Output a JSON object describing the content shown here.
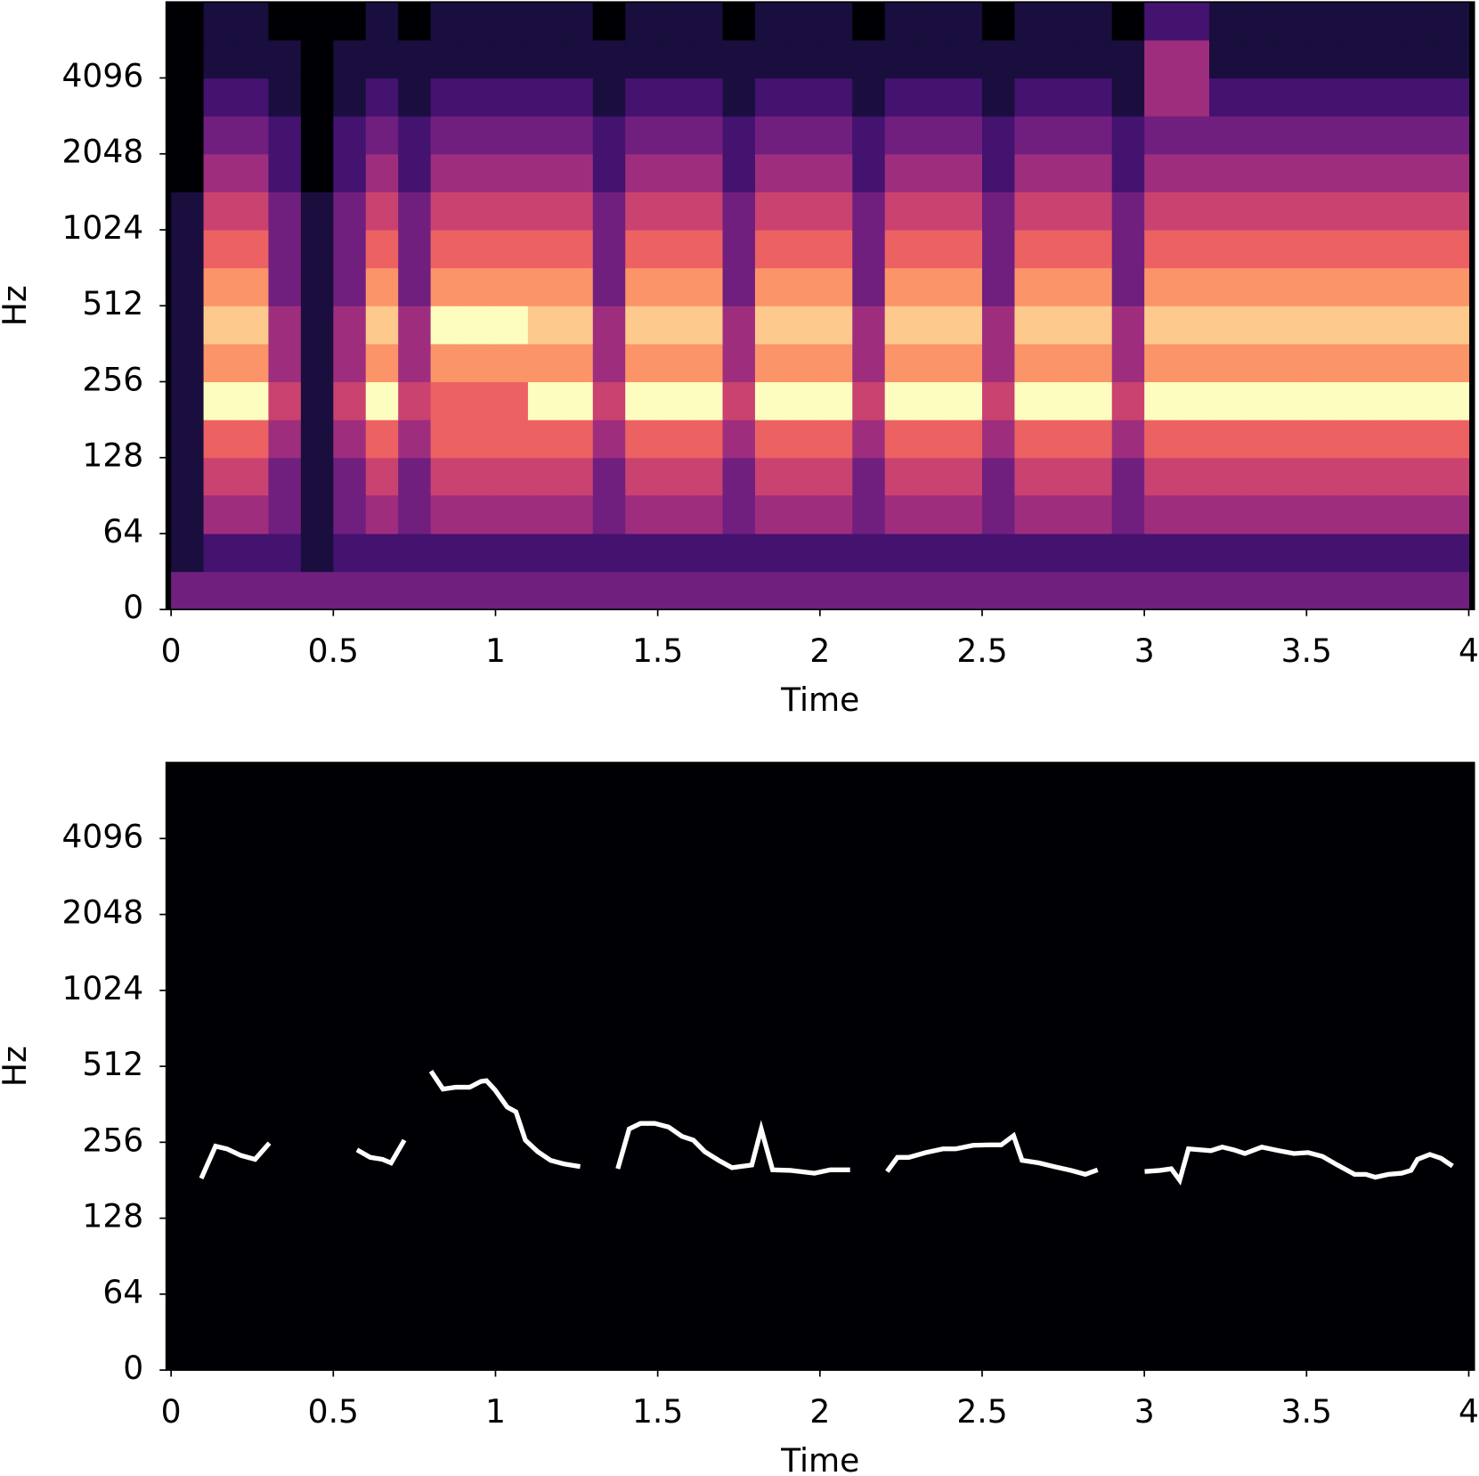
{
  "chart_data": [
    {
      "type": "heatmap",
      "xlabel": "Time",
      "ylabel": "Hz",
      "yscale": "symlog",
      "linthresh": 64,
      "colormap": "magma",
      "zlim": [
        0,
        9
      ],
      "xlim": [
        -0.015,
        4.017
      ],
      "ylim": [
        0,
        8192
      ],
      "xticks": [
        0,
        0.5,
        1,
        1.5,
        2,
        2.5,
        3,
        3.5,
        4
      ],
      "yticks": [
        0,
        64,
        128,
        256,
        512,
        1024,
        2048,
        4096
      ],
      "x_edges": [
        0,
        0.1,
        0.2,
        0.3,
        0.4,
        0.5,
        0.6,
        0.7,
        0.8,
        0.9,
        1,
        1.1,
        1.2,
        1.3,
        1.4,
        1.5,
        1.6,
        1.7,
        1.8,
        1.9,
        2,
        2.1,
        2.2,
        2.3,
        2.4,
        2.5,
        2.6,
        2.7,
        2.8,
        2.9,
        3,
        3.1,
        3.2,
        3.3,
        3.4,
        3.5,
        3.6,
        3.7,
        3.8,
        3.9,
        4
      ],
      "y_edges": [
        0,
        32,
        64,
        91,
        128,
        181,
        256,
        362,
        512,
        724,
        1024,
        1448,
        2048,
        2896,
        4096,
        5793,
        8192
      ],
      "z": [
        [
          3,
          3,
          3,
          3,
          3,
          3,
          3,
          3,
          3,
          3,
          3,
          3,
          3,
          3,
          3,
          3,
          3,
          3,
          3,
          3,
          3,
          3,
          3,
          3,
          3,
          3,
          3,
          3,
          3,
          3,
          3,
          3,
          3,
          3,
          3,
          3,
          3,
          3,
          3,
          3
        ],
        [
          1,
          2,
          2,
          2,
          1,
          2,
          2,
          2,
          2,
          2,
          2,
          2,
          2,
          2,
          2,
          2,
          2,
          2,
          2,
          2,
          2,
          2,
          2,
          2,
          2,
          2,
          2,
          2,
          2,
          2,
          2,
          2,
          2,
          2,
          2,
          2,
          2,
          2,
          2,
          2
        ],
        [
          1,
          4,
          4,
          3,
          1,
          3,
          4,
          3,
          4,
          4,
          4,
          4,
          4,
          3,
          4,
          4,
          4,
          3,
          4,
          4,
          4,
          3,
          4,
          4,
          4,
          3,
          4,
          4,
          4,
          3,
          4,
          4,
          4,
          4,
          4,
          4,
          4,
          4,
          4,
          4
        ],
        [
          1,
          5,
          5,
          3,
          1,
          3,
          5,
          3,
          5,
          5,
          5,
          5,
          5,
          3,
          5,
          5,
          5,
          3,
          5,
          5,
          5,
          3,
          5,
          5,
          5,
          3,
          5,
          5,
          5,
          3,
          5,
          5,
          5,
          5,
          5,
          5,
          5,
          5,
          5,
          5
        ],
        [
          1,
          6,
          6,
          4,
          1,
          4,
          6,
          4,
          6,
          6,
          6,
          6,
          6,
          4,
          6,
          6,
          6,
          4,
          6,
          6,
          6,
          4,
          6,
          6,
          6,
          4,
          6,
          6,
          6,
          4,
          6,
          6,
          6,
          6,
          6,
          6,
          6,
          6,
          6,
          6
        ],
        [
          1,
          9,
          9,
          5,
          1,
          5,
          9,
          5,
          6,
          6,
          6,
          9,
          9,
          5,
          9,
          9,
          9,
          5,
          9,
          9,
          9,
          5,
          9,
          9,
          9,
          5,
          9,
          9,
          9,
          5,
          9,
          9,
          9,
          9,
          9,
          9,
          9,
          9,
          9,
          9
        ],
        [
          1,
          7,
          7,
          4,
          1,
          4,
          7,
          4,
          7,
          7,
          7,
          7,
          7,
          4,
          7,
          7,
          7,
          4,
          7,
          7,
          7,
          4,
          7,
          7,
          7,
          4,
          7,
          7,
          7,
          4,
          7,
          7,
          7,
          7,
          7,
          7,
          7,
          7,
          7,
          7
        ],
        [
          1,
          8,
          8,
          4,
          1,
          4,
          8,
          4,
          9,
          9,
          9,
          8,
          8,
          4,
          8,
          8,
          8,
          4,
          8,
          8,
          8,
          4,
          8,
          8,
          8,
          4,
          8,
          8,
          8,
          4,
          8,
          8,
          8,
          8,
          8,
          8,
          8,
          8,
          8,
          8
        ],
        [
          1,
          7,
          7,
          3,
          1,
          3,
          7,
          3,
          7,
          7,
          7,
          7,
          7,
          3,
          7,
          7,
          7,
          3,
          7,
          7,
          7,
          3,
          7,
          7,
          7,
          3,
          7,
          7,
          7,
          3,
          7,
          7,
          7,
          7,
          7,
          7,
          7,
          7,
          7,
          7
        ],
        [
          1,
          6,
          6,
          3,
          1,
          3,
          6,
          3,
          6,
          6,
          6,
          6,
          6,
          3,
          6,
          6,
          6,
          3,
          6,
          6,
          6,
          3,
          6,
          6,
          6,
          3,
          6,
          6,
          6,
          3,
          6,
          6,
          6,
          6,
          6,
          6,
          6,
          6,
          6,
          6
        ],
        [
          1,
          5,
          5,
          3,
          1,
          3,
          5,
          3,
          5,
          5,
          5,
          5,
          5,
          3,
          5,
          5,
          5,
          3,
          5,
          5,
          5,
          3,
          5,
          5,
          5,
          3,
          5,
          5,
          5,
          3,
          5,
          5,
          5,
          5,
          5,
          5,
          5,
          5,
          5,
          5
        ],
        [
          0,
          4,
          4,
          2,
          0,
          2,
          4,
          2,
          4,
          4,
          4,
          4,
          4,
          2,
          4,
          4,
          4,
          2,
          4,
          4,
          4,
          2,
          4,
          4,
          4,
          2,
          4,
          4,
          4,
          2,
          4,
          4,
          4,
          4,
          4,
          4,
          4,
          4,
          4,
          4
        ],
        [
          0,
          3,
          3,
          2,
          0,
          2,
          3,
          2,
          3,
          3,
          3,
          3,
          3,
          2,
          3,
          3,
          3,
          2,
          3,
          3,
          3,
          2,
          3,
          3,
          3,
          2,
          3,
          3,
          3,
          2,
          3,
          3,
          3,
          3,
          3,
          3,
          3,
          3,
          3,
          3
        ],
        [
          0,
          2,
          2,
          1,
          0,
          1,
          2,
          1,
          2,
          2,
          2,
          2,
          2,
          1,
          2,
          2,
          2,
          1,
          2,
          2,
          2,
          1,
          2,
          2,
          2,
          1,
          2,
          2,
          2,
          1,
          4,
          4,
          2,
          2,
          2,
          2,
          2,
          2,
          2,
          2
        ],
        [
          0,
          1,
          1,
          1,
          0,
          1,
          1,
          1,
          1,
          1,
          1,
          1,
          1,
          1,
          1,
          1,
          1,
          1,
          1,
          1,
          1,
          1,
          1,
          1,
          1,
          1,
          1,
          1,
          1,
          1,
          4,
          4,
          1,
          1,
          1,
          1,
          1,
          1,
          1,
          1
        ],
        [
          0,
          1,
          1,
          0,
          0,
          0,
          1,
          0,
          1,
          1,
          1,
          1,
          1,
          0,
          1,
          1,
          1,
          0,
          1,
          1,
          1,
          0,
          1,
          1,
          1,
          0,
          1,
          1,
          1,
          0,
          2,
          2,
          1,
          1,
          1,
          1,
          1,
          1,
          1,
          1
        ]
      ]
    },
    {
      "type": "line",
      "xlabel": "Time",
      "ylabel": "Hz",
      "yscale": "symlog",
      "linthresh": 64,
      "facecolor": "#000004",
      "xlim": [
        -0.015,
        4.017
      ],
      "ylim": [
        0,
        8192
      ],
      "xticks": [
        0,
        0.5,
        1,
        1.5,
        2,
        2.5,
        3,
        3.5,
        4
      ],
      "yticks": [
        0,
        64,
        128,
        256,
        512,
        1024,
        2048,
        4096
      ],
      "x": [
        0.093,
        0.137,
        0.172,
        0.215,
        0.259,
        0.303,
        0.44,
        0.573,
        0.614,
        0.652,
        0.678,
        0.719,
        0.76,
        0.801,
        0.838,
        0.876,
        0.92,
        0.955,
        0.972,
        0.999,
        1.036,
        1.063,
        1.092,
        1.13,
        1.17,
        1.211,
        1.261,
        1.32,
        1.377,
        1.412,
        1.447,
        1.491,
        1.534,
        1.575,
        1.61,
        1.645,
        1.688,
        1.729,
        1.79,
        1.819,
        1.854,
        1.91,
        1.983,
        2.032,
        2.093,
        2.15,
        2.207,
        2.239,
        2.274,
        2.326,
        2.379,
        2.419,
        2.472,
        2.524,
        2.559,
        2.597,
        2.623,
        2.675,
        2.722,
        2.774,
        2.818,
        2.856,
        2.93,
        3.001,
        3.048,
        3.083,
        3.109,
        3.136,
        3.17,
        3.205,
        3.24,
        3.275,
        3.31,
        3.362,
        3.415,
        3.461,
        3.505,
        3.549,
        3.595,
        3.648,
        3.683,
        3.712,
        3.752,
        3.793,
        3.822,
        3.842,
        3.88,
        3.915,
        3.95
      ],
      "series": [
        {
          "color": "#ffffff",
          "values": [
            184,
            247,
            241,
            227,
            219,
            254,
            null,
            239,
            223,
            219,
            212,
            261,
            null,
            490,
            416,
            423,
            423,
            446,
            449,
            412,
            353,
            338,
            261,
            235,
            217,
            210,
            205,
            null,
            201,
            289,
            304,
            304,
            294,
            270,
            261,
            235,
            217,
            203,
            208,
            289,
            199,
            198,
            193,
            199,
            199,
            null,
            196,
            223,
            223,
            233,
            241,
            241,
            249,
            250,
            250,
            272,
            217,
            212,
            205,
            198,
            191,
            199,
            null,
            196,
            198,
            201,
            181,
            241,
            239,
            237,
            245,
            239,
            231,
            245,
            237,
            231,
            233,
            225,
            208,
            191,
            191,
            186,
            191,
            193,
            198,
            219,
            229,
            221,
            206
          ]
        }
      ]
    }
  ]
}
